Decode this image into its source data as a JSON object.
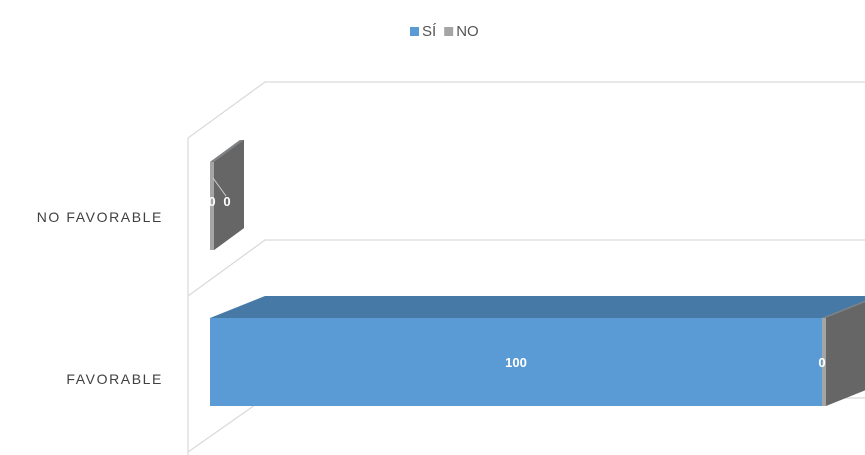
{
  "chart_data": {
    "type": "bar",
    "orientation": "horizontal",
    "stacked": true,
    "three_d": true,
    "categories": [
      "NO FAVORABLE",
      "FAVORABLE"
    ],
    "series": [
      {
        "name": "SÍ",
        "values": [
          0,
          100
        ],
        "color": "#5B9BD5"
      },
      {
        "name": "NO",
        "values": [
          0,
          0
        ],
        "color": "#A5A5A5"
      }
    ],
    "data_labels": [
      "0",
      "0",
      "100",
      "0"
    ],
    "title": "",
    "xlabel": "",
    "ylabel": "",
    "xlim": [
      0,
      120
    ],
    "legend_position": "top",
    "grid": true,
    "colors": {
      "si": "#5B9BD5",
      "no": "#A5A5A5",
      "gridline": "#d9d9d9"
    }
  }
}
